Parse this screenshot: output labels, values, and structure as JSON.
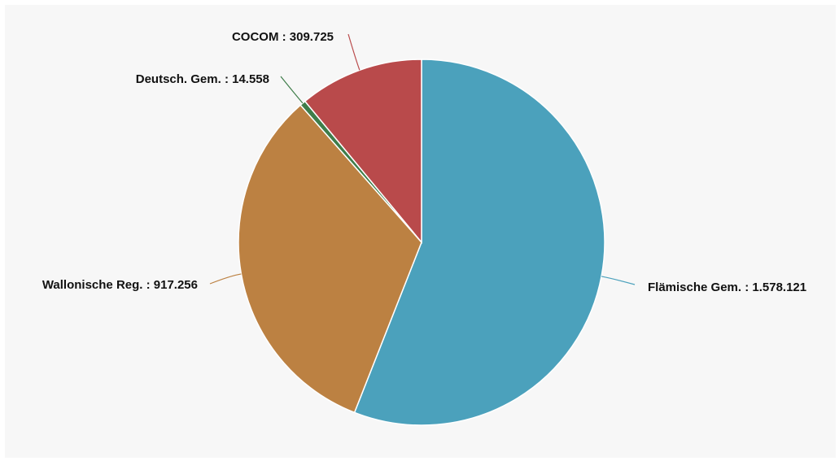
{
  "chart_data": {
    "type": "pie",
    "title": "",
    "slices": [
      {
        "label": "Flämische Gem.",
        "value_text": "1.578.121",
        "value": 1578121,
        "color": "#4ba1bc"
      },
      {
        "label": "Wallonische Reg.",
        "value_text": "917.256",
        "value": 917256,
        "color": "#bc8142"
      },
      {
        "label": "Deutsch. Gem.",
        "value_text": "14.558",
        "value": 14558,
        "color": "#3f7d4a"
      },
      {
        "label": "COCOM",
        "value_text": "309.725",
        "value": 309725,
        "color": "#b94a4b"
      }
    ],
    "legend": "none",
    "data_labels": "outside"
  }
}
